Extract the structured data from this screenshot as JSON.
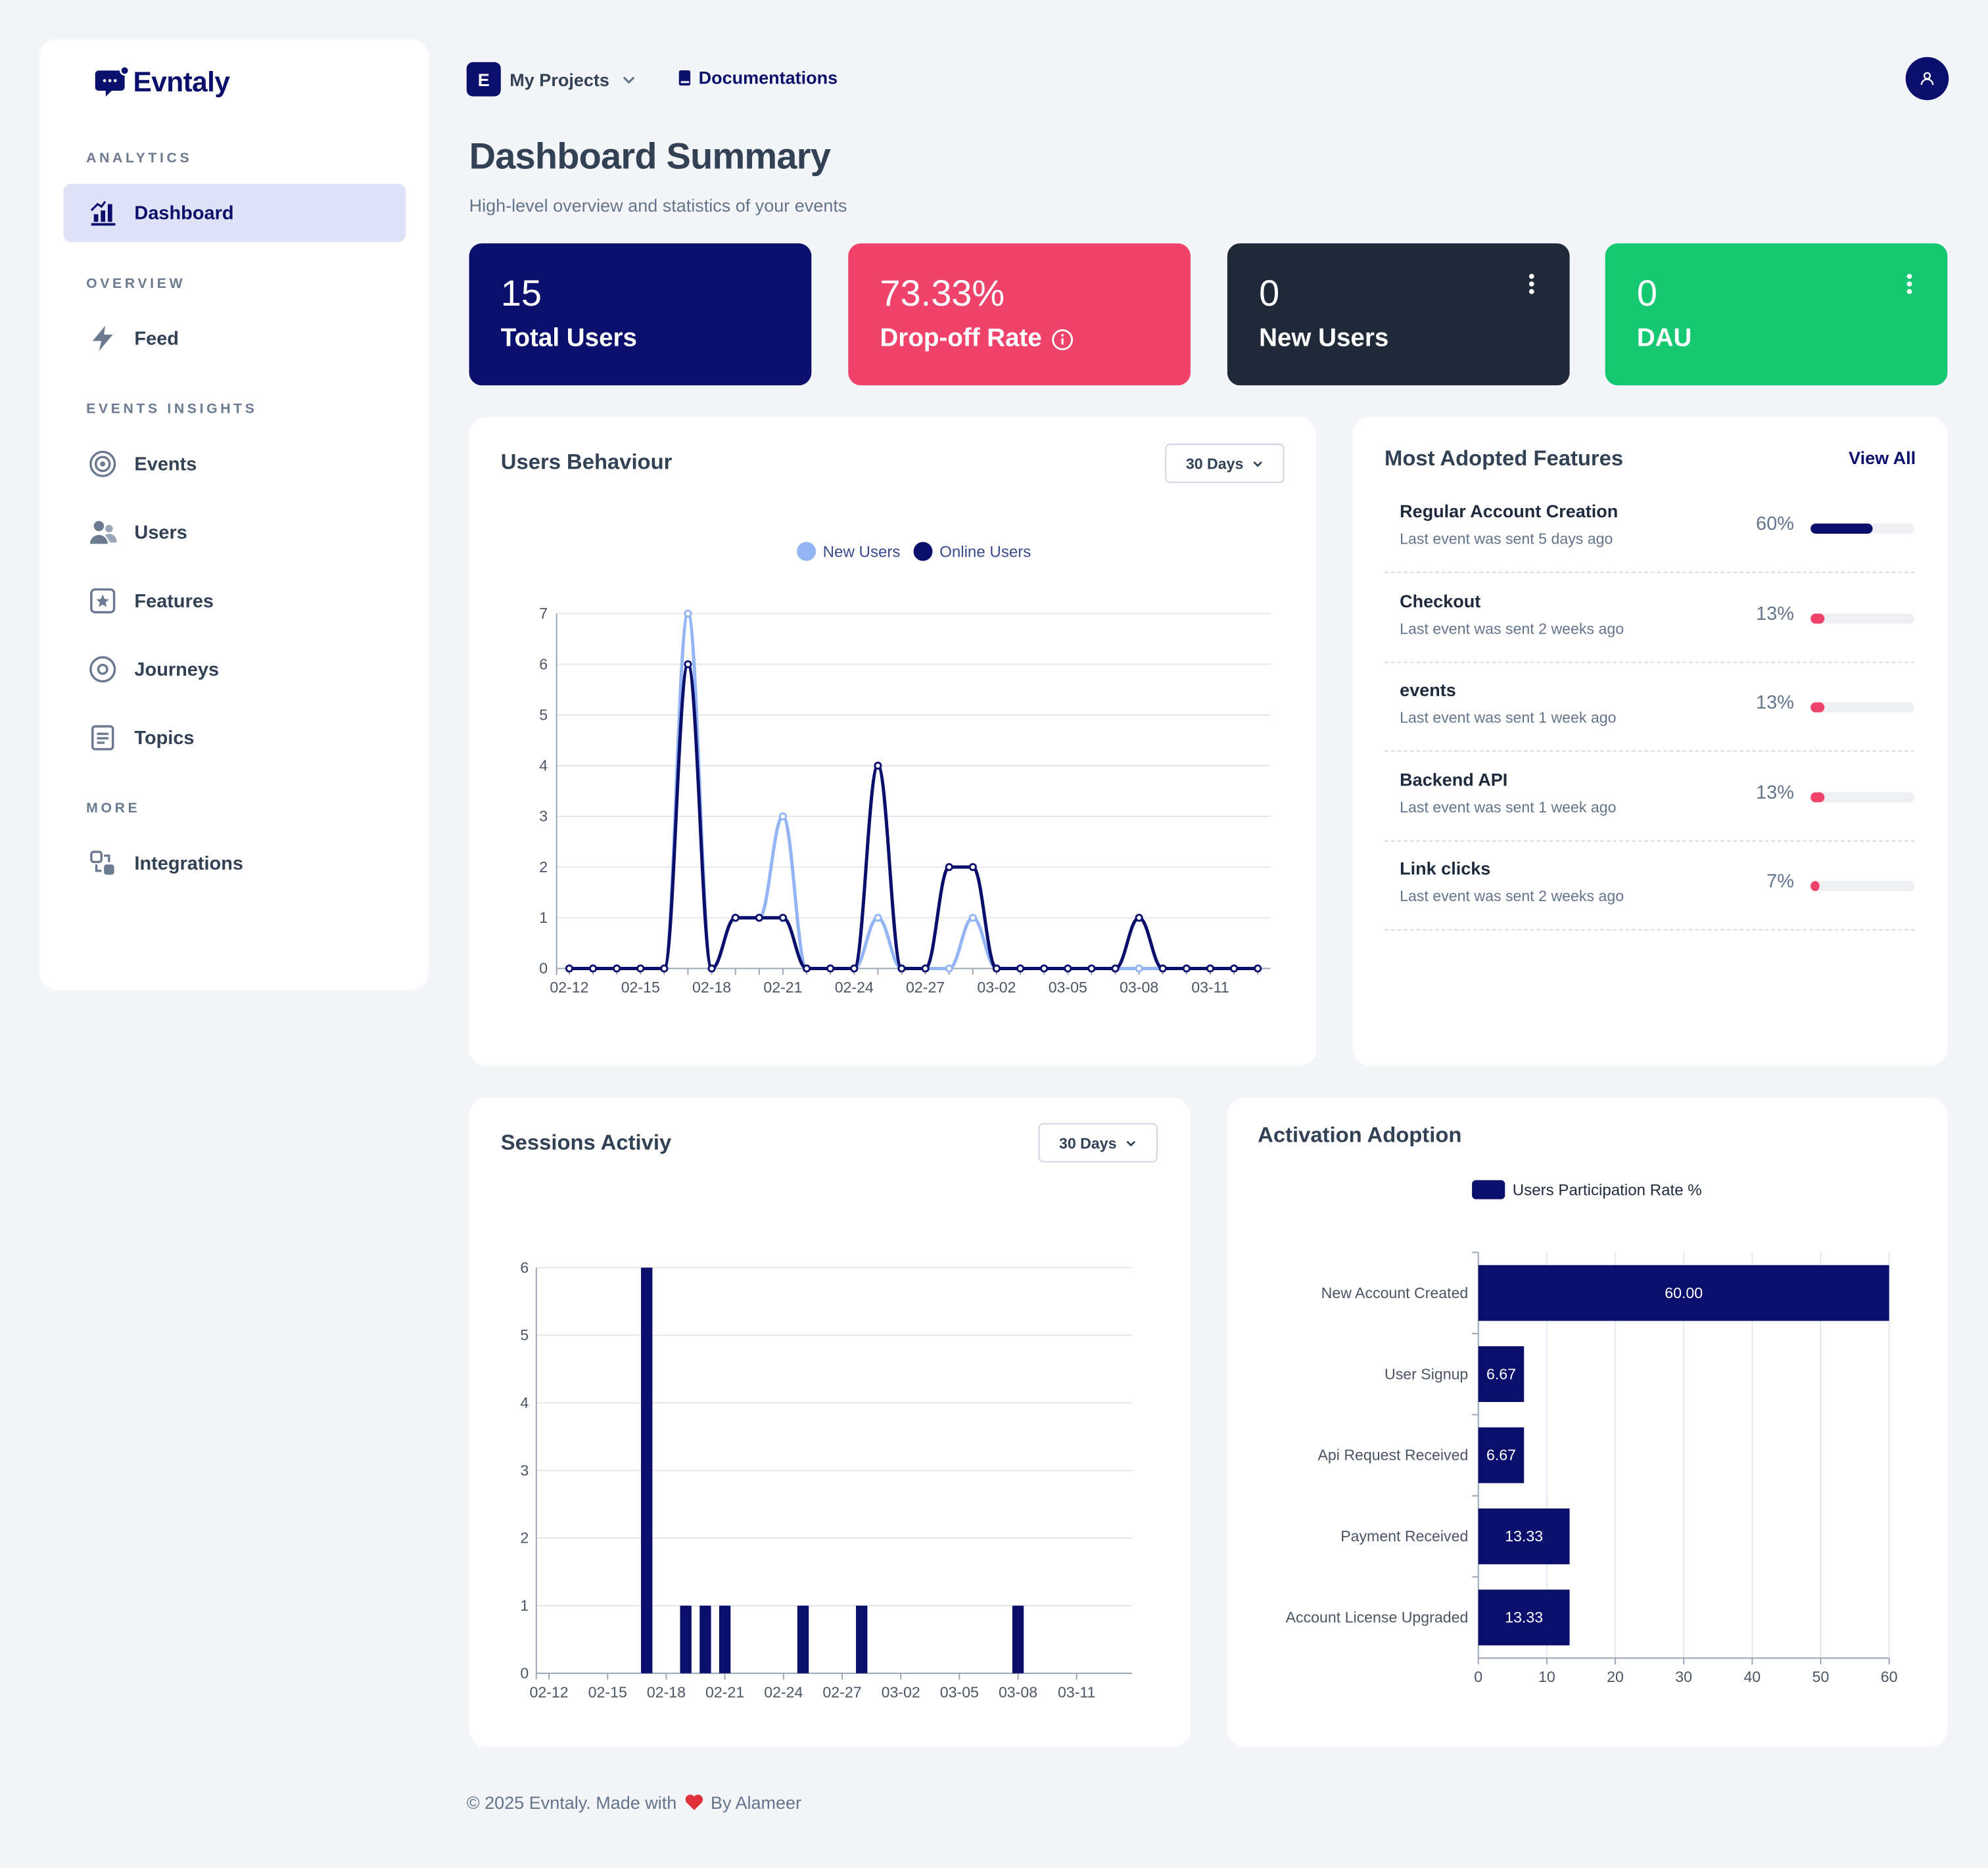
{
  "brand": {
    "name": "Evntaly"
  },
  "sidebar": {
    "sections": [
      {
        "label": "ANALYTICS"
      },
      {
        "label": "OVERVIEW"
      },
      {
        "label": "EVENTS INSIGHTS"
      },
      {
        "label": "MORE"
      }
    ],
    "items": [
      {
        "label": "Dashboard",
        "icon": "bar-chart-icon",
        "active": true
      },
      {
        "label": "Feed",
        "icon": "lightning-icon"
      },
      {
        "label": "Events",
        "icon": "broadcast-icon"
      },
      {
        "label": "Users",
        "icon": "users-icon"
      },
      {
        "label": "Features",
        "icon": "star-box-icon"
      },
      {
        "label": "Journeys",
        "icon": "target-icon"
      },
      {
        "label": "Topics",
        "icon": "document-list-icon"
      },
      {
        "label": "Integrations",
        "icon": "integrations-icon"
      }
    ]
  },
  "topbar": {
    "project_badge": "E",
    "project_label": "My Projects",
    "docs_label": "Documentations"
  },
  "header": {
    "title": "Dashboard Summary",
    "subtitle": "High-level overview and statistics of your events"
  },
  "stats": [
    {
      "value": "15",
      "label": "Total Users",
      "color": "#0a0f6b"
    },
    {
      "value": "73.33%",
      "label": "Drop-off Rate",
      "color": "#f0436c",
      "info": true
    },
    {
      "value": "0",
      "label": "New Users",
      "color": "#1f2937",
      "menu": true
    },
    {
      "value": "0",
      "label": "DAU",
      "color": "#16c872",
      "menu": true
    }
  ],
  "users_behaviour": {
    "title": "Users Behaviour",
    "range": "30 Days"
  },
  "most_adopted": {
    "title": "Most Adopted Features",
    "view_all": "View All",
    "items": [
      {
        "name": "Regular Account Creation",
        "sub": "Last event was sent 5 days ago",
        "pct": "60%",
        "value": 60,
        "color": "#0a0f6b"
      },
      {
        "name": "Checkout",
        "sub": "Last event was sent 2 weeks ago",
        "pct": "13%",
        "value": 13,
        "color": "#f0436c"
      },
      {
        "name": "events",
        "sub": "Last event was sent 1 week ago",
        "pct": "13%",
        "value": 13,
        "color": "#f0436c"
      },
      {
        "name": "Backend API",
        "sub": "Last event was sent 1 week ago",
        "pct": "13%",
        "value": 13,
        "color": "#f0436c"
      },
      {
        "name": "Link clicks",
        "sub": "Last event was sent 2 weeks ago",
        "pct": "7%",
        "value": 7,
        "color": "#f0436c"
      }
    ]
  },
  "sessions": {
    "title": "Sessions Activiy",
    "range": "30 Days"
  },
  "activation": {
    "title": "Activation Adoption"
  },
  "footer": {
    "prefix": "© 2025 Evntaly. Made with",
    "suffix": "By Alameer"
  },
  "chart_data": [
    {
      "type": "line",
      "title": "",
      "x": [
        "02-12",
        "02-13",
        "02-14",
        "02-15",
        "02-16",
        "02-17",
        "02-18",
        "02-19",
        "02-20",
        "02-21",
        "02-22",
        "02-23",
        "02-24",
        "02-25",
        "02-26",
        "02-27",
        "02-28",
        "03-01",
        "03-02",
        "03-03",
        "03-04",
        "03-05",
        "03-06",
        "03-07",
        "03-08",
        "03-09",
        "03-10",
        "03-11",
        "03-12",
        "03-13"
      ],
      "xticks": [
        "02-12",
        "02-15",
        "02-18",
        "02-21",
        "02-24",
        "02-27",
        "03-02",
        "03-05",
        "03-08",
        "03-11"
      ],
      "series": [
        {
          "name": "New Users",
          "color": "#93b4f5",
          "values": [
            0,
            0,
            0,
            0,
            0,
            7,
            0,
            1,
            1,
            3,
            0,
            0,
            0,
            1,
            0,
            0,
            0,
            1,
            0,
            0,
            0,
            0,
            0,
            0,
            0,
            0,
            0,
            0,
            0,
            0
          ]
        },
        {
          "name": "Online Users",
          "color": "#0a0f6b",
          "values": [
            0,
            0,
            0,
            0,
            0,
            6,
            0,
            1,
            1,
            1,
            0,
            0,
            0,
            4,
            0,
            0,
            2,
            2,
            0,
            0,
            0,
            0,
            0,
            0,
            1,
            0,
            0,
            0,
            0,
            0
          ]
        }
      ],
      "ylim": [
        0,
        7
      ],
      "yticks": [
        0,
        1,
        2,
        3,
        4,
        5,
        6,
        7
      ],
      "legend": "top-center",
      "grid": true
    },
    {
      "type": "bar",
      "title": "",
      "categories": [
        "02-12",
        "02-13",
        "02-14",
        "02-15",
        "02-16",
        "02-17",
        "02-18",
        "02-19",
        "02-20",
        "02-21",
        "02-22",
        "02-23",
        "02-24",
        "02-25",
        "02-26",
        "02-27",
        "02-28",
        "03-01",
        "03-02",
        "03-03",
        "03-04",
        "03-05",
        "03-06",
        "03-07",
        "03-08",
        "03-09",
        "03-10",
        "03-11",
        "03-12",
        "03-13"
      ],
      "xticks": [
        "02-12",
        "02-15",
        "02-18",
        "02-21",
        "02-24",
        "02-27",
        "03-02",
        "03-05",
        "03-08",
        "03-11"
      ],
      "values": [
        0,
        0,
        0,
        0,
        0,
        6,
        0,
        1,
        1,
        1,
        0,
        0,
        0,
        1,
        0,
        0,
        1,
        0,
        0,
        0,
        0,
        0,
        0,
        0,
        1,
        0,
        0,
        0,
        0,
        0
      ],
      "color": "#0a0f6b",
      "ylim": [
        0,
        6
      ],
      "yticks": [
        0,
        1,
        2,
        3,
        4,
        5,
        6
      ],
      "grid": true
    },
    {
      "type": "bar",
      "orientation": "horizontal",
      "title": "",
      "categories": [
        "New Account Created",
        "User Signup",
        "Api Request Received",
        "Payment Received",
        "Account License Upgraded"
      ],
      "series": [
        {
          "name": "Users Participation Rate %",
          "color": "#0a0f6b",
          "values": [
            60.0,
            6.67,
            6.67,
            13.33,
            13.33
          ]
        }
      ],
      "value_labels": [
        "60.00",
        "6.67",
        "6.67",
        "13.33",
        "13.33"
      ],
      "xlim": [
        0,
        60
      ],
      "xticks": [
        0,
        10,
        20,
        30,
        40,
        50,
        60
      ],
      "legend": "top-center",
      "grid": true
    }
  ]
}
